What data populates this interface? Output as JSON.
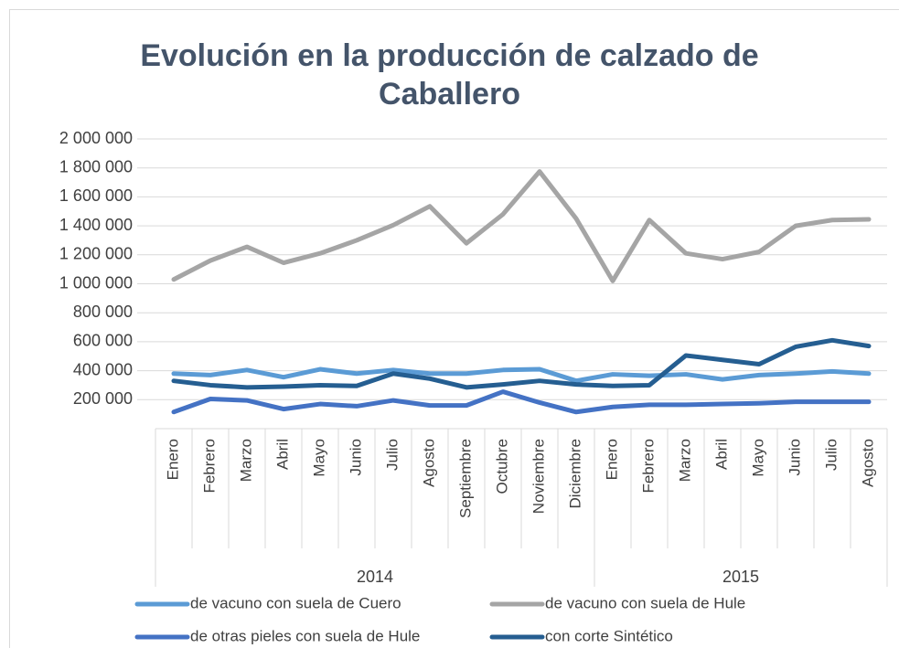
{
  "chart_data": {
    "type": "line",
    "title": "Evolución en la producción de calzado de Caballero",
    "categories": [
      "Enero",
      "Febrero",
      "Marzo",
      "Abril",
      "Mayo",
      "Junio",
      "Julio",
      "Agosto",
      "Septiembre",
      "Octubre",
      "Noviembre",
      "Diciembre",
      "Enero",
      "Febrero",
      "Marzo",
      "Abril",
      "Mayo",
      "Junio",
      "Julio",
      "Agosto"
    ],
    "groups": [
      {
        "name": "2014",
        "size": 12
      },
      {
        "name": "2015",
        "size": 8
      }
    ],
    "series": [
      {
        "name": "de vacuno con suela de Cuero",
        "color": "#5b9bd5",
        "values": [
          380000,
          370000,
          405000,
          355000,
          410000,
          380000,
          405000,
          380000,
          380000,
          405000,
          410000,
          330000,
          375000,
          365000,
          375000,
          340000,
          370000,
          380000,
          395000,
          380000
        ]
      },
      {
        "name": "de vacuno con suela de Hule",
        "color": "#a5a5a5",
        "values": [
          1030000,
          1160000,
          1255000,
          1145000,
          1210000,
          1300000,
          1405000,
          1535000,
          1280000,
          1480000,
          1775000,
          1450000,
          1020000,
          1440000,
          1210000,
          1170000,
          1220000,
          1400000,
          1440000,
          1445000
        ]
      },
      {
        "name": "de otras pieles con suela de Hule",
        "color": "#4472c4",
        "values": [
          115000,
          205000,
          195000,
          135000,
          170000,
          155000,
          195000,
          160000,
          160000,
          255000,
          180000,
          115000,
          150000,
          165000,
          165000,
          170000,
          175000,
          185000,
          185000,
          185000
        ]
      },
      {
        "name": "con corte Sintético",
        "color": "#255e91",
        "values": [
          330000,
          300000,
          285000,
          290000,
          300000,
          295000,
          380000,
          345000,
          285000,
          305000,
          330000,
          305000,
          295000,
          300000,
          505000,
          475000,
          445000,
          565000,
          610000,
          570000
        ]
      }
    ],
    "ylim": [
      0,
      2000000
    ],
    "yticks": [
      {
        "value": 200000,
        "label": "200 000"
      },
      {
        "value": 400000,
        "label": "400 000"
      },
      {
        "value": 600000,
        "label": "600 000"
      },
      {
        "value": 800000,
        "label": "800 000"
      },
      {
        "value": 1000000,
        "label": "1 000 000"
      },
      {
        "value": 1200000,
        "label": "1 200 000"
      },
      {
        "value": 1400000,
        "label": "1 400 000"
      },
      {
        "value": 1600000,
        "label": "1 600 000"
      },
      {
        "value": 1800000,
        "label": "1 800 000"
      },
      {
        "value": 2000000,
        "label": "2 000 000"
      }
    ],
    "grid": true,
    "legend": "bottom"
  }
}
